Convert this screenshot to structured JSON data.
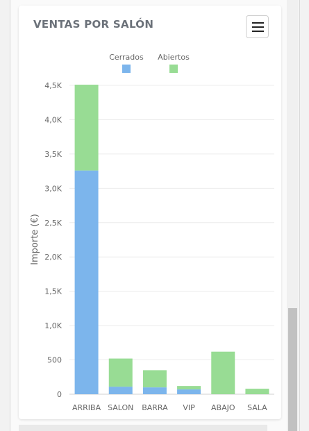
{
  "card": {
    "title": "VENTAS POR SALÓN"
  },
  "icons": {
    "menu": "hamburger-menu-icon"
  },
  "colors": {
    "cerrados": "#7cb5ec",
    "abiertos": "#98dc94",
    "grid": "#ececec",
    "axis_text": "#666666"
  },
  "chart_data": {
    "type": "bar",
    "stacked": true,
    "title": "VENTAS POR SALÓN",
    "xlabel": "",
    "ylabel": "Importe (€)",
    "categories": [
      "ARRIBA",
      "SALON",
      "BARRA",
      "VIP",
      "ABAJO",
      "SALA"
    ],
    "series": [
      {
        "name": "Cerrados",
        "color": "#7cb5ec",
        "values": [
          3260,
          110,
          100,
          70,
          0,
          0
        ]
      },
      {
        "name": "Abiertos",
        "color": "#98dc94",
        "values": [
          1250,
          410,
          250,
          50,
          620,
          80
        ]
      }
    ],
    "ylim": [
      0,
      4500
    ],
    "yticks": [
      0,
      500,
      1000,
      1500,
      2000,
      2500,
      3000,
      3500,
      4000,
      4500
    ],
    "ytick_labels": [
      "0",
      "500",
      "1,0K",
      "1,5K",
      "2,0K",
      "2,5K",
      "3,0K",
      "3,5K",
      "4,0K",
      "4,5K"
    ],
    "legend_position": "top-center",
    "grid": true
  }
}
